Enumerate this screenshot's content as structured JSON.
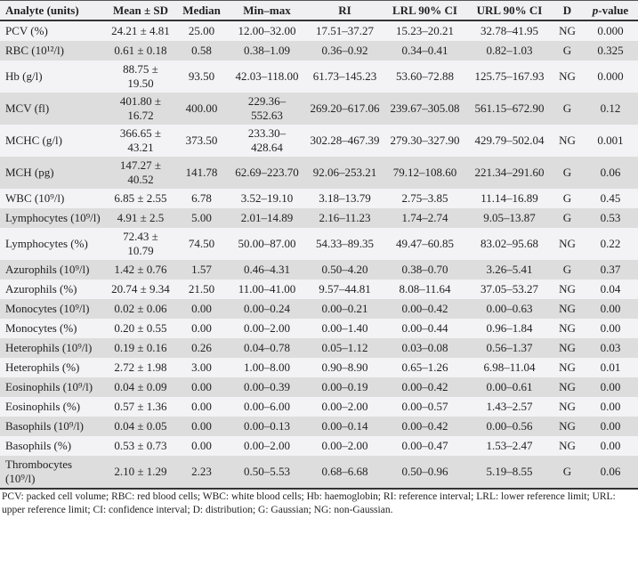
{
  "table": {
    "headers": [
      "Analyte (units)",
      "Mean ± SD",
      "Median",
      "Min–max",
      "RI",
      "LRL 90% CI",
      "URL 90% CI",
      "D",
      "p",
      "-value"
    ],
    "rows": [
      [
        "PCV (%)",
        "24.21 ± 4.81",
        "25.00",
        "12.00–32.00",
        "17.51–37.27",
        "15.23–20.21",
        "32.78–41.95",
        "NG",
        "0.000"
      ],
      [
        "RBC (10¹²/l)",
        "0.61 ± 0.18",
        "0.58",
        "0.38–1.09",
        "0.36–0.92",
        "0.34–0.41",
        "0.82–1.03",
        "G",
        "0.325"
      ],
      [
        "Hb (g/l)",
        "88.75 ± 19.50",
        "93.50",
        "42.03–118.00",
        "61.73–145.23",
        "53.60–72.88",
        "125.75–167.93",
        "NG",
        "0.000"
      ],
      [
        "MCV (fl)",
        "401.80 ± 16.72",
        "400.00",
        "229.36–552.63",
        "269.20–617.06",
        "239.67–305.08",
        "561.15–672.90",
        "G",
        "0.12"
      ],
      [
        "MCHC (g/l)",
        "366.65 ± 43.21",
        "373.50",
        "233.30–428.64",
        "302.28–467.39",
        "279.30–327.90",
        "429.79–502.04",
        "NG",
        "0.001"
      ],
      [
        "MCH (pg)",
        "147.27 ± 40.52",
        "141.78",
        "62.69–223.70",
        "92.06–253.21",
        "79.12–108.60",
        "221.34–291.60",
        "G",
        "0.06"
      ],
      [
        "WBC (10⁹/l)",
        "6.85 ± 2.55",
        "6.78",
        "3.52–19.10",
        "3.18–13.79",
        "2.75–3.85",
        "11.14–16.89",
        "G",
        "0.45"
      ],
      [
        "Lymphocytes (10⁹/l)",
        "4.91 ± 2.5",
        "5.00",
        "2.01–14.89",
        "2.16–11.23",
        "1.74–2.74",
        "9.05–13.87",
        "G",
        "0.53"
      ],
      [
        "Lymphocytes (%)",
        "72.43 ± 10.79",
        "74.50",
        "50.00–87.00",
        "54.33–89.35",
        "49.47–60.85",
        "83.02–95.68",
        "NG",
        "0.22"
      ],
      [
        "Azurophils (10⁹/l)",
        "1.42 ± 0.76",
        "1.57",
        "0.46–4.31",
        "0.50–4.20",
        "0.38–0.70",
        "3.26–5.41",
        "G",
        "0.37"
      ],
      [
        "Azurophils (%)",
        "20.74 ± 9.34",
        "21.50",
        "11.00–41.00",
        "9.57–44.81",
        "8.08–11.64",
        "37.05–53.27",
        "NG",
        "0.04"
      ],
      [
        "Monocytes (10⁹/l)",
        "0.02 ± 0.06",
        "0.00",
        "0.00–0.24",
        "0.00–0.21",
        "0.00–0.42",
        "0.00–0.63",
        "NG",
        "0.00"
      ],
      [
        "Monocytes (%)",
        "0.20 ± 0.55",
        "0.00",
        "0.00–2.00",
        "0.00–1.40",
        "0.00–0.44",
        "0.96–1.84",
        "NG",
        "0.00"
      ],
      [
        "Heterophils (10⁹/l)",
        "0.19 ± 0.16",
        "0.26",
        "0.04–0.78",
        "0.05–1.12",
        "0.03–0.08",
        "0.56–1.37",
        "NG",
        "0.03"
      ],
      [
        "Heterophils (%)",
        "2.72 ± 1.98",
        "3.00",
        "1.00–8.00",
        "0.90–8.90",
        "0.65–1.26",
        "6.98–11.04",
        "NG",
        "0.01"
      ],
      [
        "Eosinophils (10⁹/l)",
        "0.04 ± 0.09",
        "0.00",
        "0.00–0.39",
        "0.00–0.19",
        "0.00–0.42",
        "0.00–0.61",
        "NG",
        "0.00"
      ],
      [
        "Eosinophils (%)",
        "0.57 ± 1.36",
        "0.00",
        "0.00–6.00",
        "0.00–2.00",
        "0.00–0.57",
        "1.43–2.57",
        "NG",
        "0.00"
      ],
      [
        "Basophils (10⁹/l)",
        "0.04 ± 0.05",
        "0.00",
        "0.00–0.13",
        "0.00–0.14",
        "0.00–0.42",
        "0.00–0.56",
        "NG",
        "0.00"
      ],
      [
        "Basophils (%)",
        "0.53 ± 0.73",
        "0.00",
        "0.00–2.00",
        "0.00–2.00",
        "0.00–0.47",
        "1.53–2.47",
        "NG",
        "0.00"
      ],
      [
        "Thrombocytes (10⁹/l)",
        "2.10 ± 1.29",
        "2.23",
        "0.50–5.53",
        "0.68–6.68",
        "0.50–0.96",
        "5.19–8.55",
        "G",
        "0.06"
      ]
    ],
    "footnote": "PCV: packed cell volume; RBC: red blood cells; WBC: white blood cells; Hb: haemoglobin; RI: reference interval; LRL: lower reference limit; URL: upper reference limit; CI: confidence interval; D: distribution; G: Gaussian; NG: non-Gaussian."
  }
}
